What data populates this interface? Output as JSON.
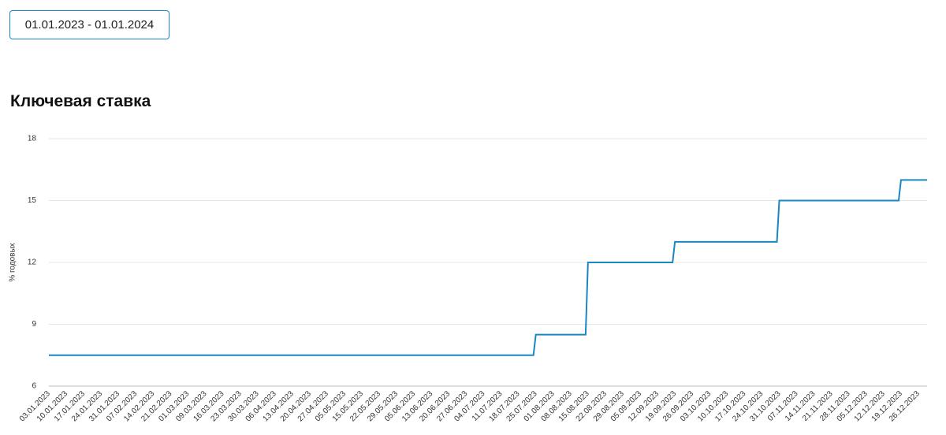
{
  "date_range": "01.01.2023 - 01.01.2024",
  "chart_data": {
    "type": "step",
    "title": "Ключевая ставка",
    "y_label": "% годовых",
    "categories": [
      "03.01.2023",
      "10.01.2023",
      "17.01.2023",
      "24.01.2023",
      "31.01.2023",
      "07.02.2023",
      "14.02.2023",
      "21.02.2023",
      "01.03.2023",
      "09.03.2023",
      "16.03.2023",
      "23.03.2023",
      "30.03.2023",
      "06.04.2023",
      "13.04.2023",
      "20.04.2023",
      "27.04.2023",
      "05.05.2023",
      "15.05.2023",
      "22.05.2023",
      "29.05.2023",
      "05.06.2023",
      "13.06.2023",
      "20.06.2023",
      "27.06.2023",
      "04.07.2023",
      "11.07.2023",
      "18.07.2023",
      "25.07.2023",
      "01.08.2023",
      "08.08.2023",
      "15.08.2023",
      "22.08.2023",
      "29.08.2023",
      "05.09.2023",
      "12.09.2023",
      "19.09.2023",
      "26.09.2023",
      "03.10.2023",
      "10.10.2023",
      "17.10.2023",
      "24.10.2023",
      "31.10.2023",
      "07.11.2023",
      "14.11.2023",
      "21.11.2023",
      "28.11.2023",
      "05.12.2023",
      "12.12.2023",
      "19.12.2023",
      "26.12.2023"
    ],
    "values": [
      7.5,
      7.5,
      7.5,
      7.5,
      7.5,
      7.5,
      7.5,
      7.5,
      7.5,
      7.5,
      7.5,
      7.5,
      7.5,
      7.5,
      7.5,
      7.5,
      7.5,
      7.5,
      7.5,
      7.5,
      7.5,
      7.5,
      7.5,
      7.5,
      7.5,
      7.5,
      7.5,
      7.5,
      8.5,
      8.5,
      8.5,
      12,
      12,
      12,
      12,
      12,
      13,
      13,
      13,
      13,
      13,
      13,
      15,
      15,
      15,
      15,
      15,
      15,
      15,
      16,
      16
    ],
    "color": "#1b86c4",
    "ylim": [
      6,
      18
    ],
    "yticks": [
      6,
      9,
      12,
      15,
      18
    ],
    "grid": true
  }
}
